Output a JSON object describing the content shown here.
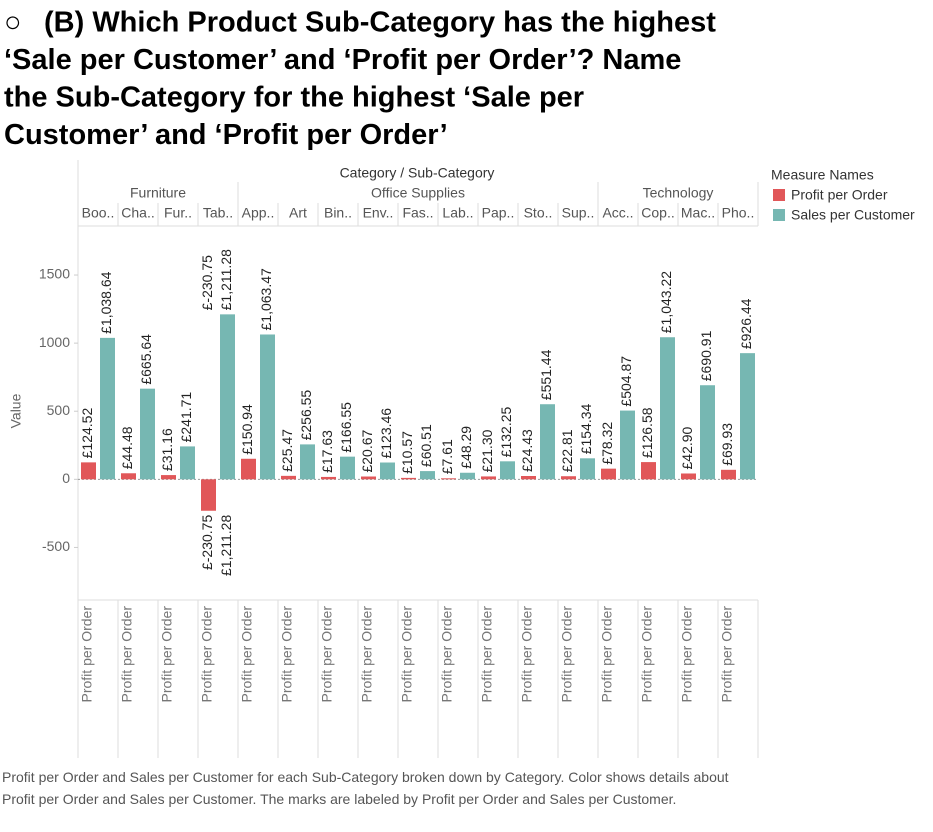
{
  "chart_data": {
    "type": "bar",
    "bullet": "○",
    "title_lines": [
      "(B) Which Product Sub-Category has the highest",
      "‘Sale per Customer’ and ‘Profit per Order’? Name",
      "the Sub-Category for the highest ‘Sale per",
      "Customer’ and ‘Profit per Order’"
    ],
    "column_header": "Category / Sub-Category",
    "categories": [
      {
        "group": "Furniture",
        "name": "Boo.."
      },
      {
        "group": "Furniture",
        "name": "Cha.."
      },
      {
        "group": "Furniture",
        "name": "Fur.."
      },
      {
        "group": "Furniture",
        "name": "Tab.."
      },
      {
        "group": "Office Supplies",
        "name": "App.."
      },
      {
        "group": "Office Supplies",
        "name": "Art"
      },
      {
        "group": "Office Supplies",
        "name": "Bin.."
      },
      {
        "group": "Office Supplies",
        "name": "Env.."
      },
      {
        "group": "Office Supplies",
        "name": "Fas.."
      },
      {
        "group": "Office Supplies",
        "name": "Lab.."
      },
      {
        "group": "Office Supplies",
        "name": "Pap.."
      },
      {
        "group": "Office Supplies",
        "name": "Sto.."
      },
      {
        "group": "Office Supplies",
        "name": "Sup.."
      },
      {
        "group": "Technology",
        "name": "Acc.."
      },
      {
        "group": "Technology",
        "name": "Cop.."
      },
      {
        "group": "Technology",
        "name": "Mac.."
      },
      {
        "group": "Technology",
        "name": "Pho.."
      }
    ],
    "series": [
      {
        "name": "Profit per Order",
        "color": "#e15759",
        "values": [
          124.52,
          44.48,
          31.16,
          -230.75,
          150.94,
          25.47,
          17.63,
          20.67,
          10.57,
          7.61,
          21.3,
          24.43,
          22.81,
          78.32,
          126.58,
          42.9,
          69.93
        ],
        "value_labels": [
          "£124.52",
          "£44.48",
          "£31.16",
          "£-230.75",
          "£150.94",
          "£25.47",
          "£17.63",
          "£20.67",
          "£10.57",
          "£7.61",
          "£21.30",
          "£24.43",
          "£22.81",
          "£78.32",
          "£126.58",
          "£42.90",
          "£69.93"
        ]
      },
      {
        "name": "Sales per Customer",
        "color": "#76b7b2",
        "values": [
          1038.64,
          665.64,
          241.71,
          1211.28,
          1063.47,
          256.55,
          166.55,
          123.46,
          60.51,
          48.29,
          132.25,
          551.44,
          154.34,
          504.87,
          1043.22,
          690.91,
          926.44
        ],
        "value_labels": [
          "£1,038.64",
          "£665.64",
          "£241.71",
          "£1,211.28",
          "£1,063.47",
          "£256.55",
          "£166.55",
          "£123.46",
          "£60.51",
          "£48.29",
          "£132.25",
          "£551.44",
          "£154.34",
          "£504.87",
          "£1,043.22",
          "£690.91",
          "£926.44"
        ]
      }
    ],
    "y_label": "Value",
    "ylim": [
      -886,
      1860
    ],
    "yticks": [
      -500,
      0,
      500,
      1000,
      1500
    ],
    "legend_title": "Measure Names",
    "caption": "Profit per Order and Sales per Customer for each Sub-Category broken down by Category.  Color shows details about Profit per Order and Sales per Customer.  The marks are labeled by Profit per Order and Sales per Customer."
  }
}
